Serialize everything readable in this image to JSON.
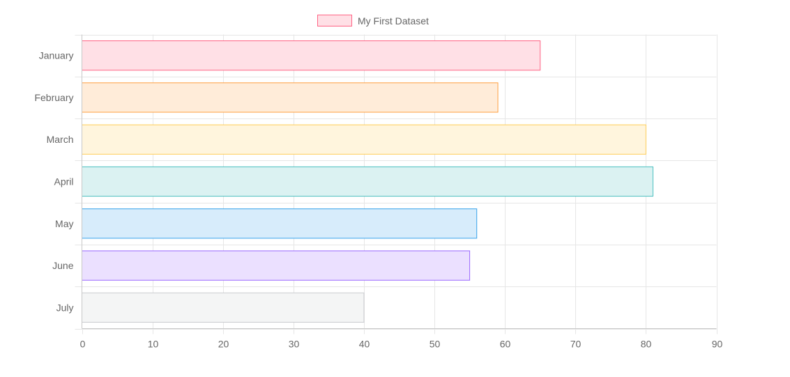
{
  "chart_data": {
    "type": "bar",
    "orientation": "horizontal",
    "categories": [
      "January",
      "February",
      "March",
      "April",
      "May",
      "June",
      "July"
    ],
    "series": [
      {
        "name": "My First Dataset",
        "values": [
          65,
          59,
          80,
          81,
          56,
          55,
          40
        ],
        "background_colors": [
          "#ffe0e6",
          "#ffecd9",
          "#fff5dd",
          "#dbf2f2",
          "#d7ecfb",
          "#ebe0ff",
          "#f4f5f5"
        ],
        "border_colors": [
          "#ff6384",
          "#ff9f40",
          "#ffcd56",
          "#4bc0c0",
          "#36a2eb",
          "#9966ff",
          "#c9cbcf"
        ]
      }
    ],
    "x_ticks": [
      0,
      10,
      20,
      30,
      40,
      50,
      60,
      70,
      80,
      90
    ],
    "xlim": [
      0,
      90
    ],
    "grid": true,
    "legend_position": "top"
  }
}
